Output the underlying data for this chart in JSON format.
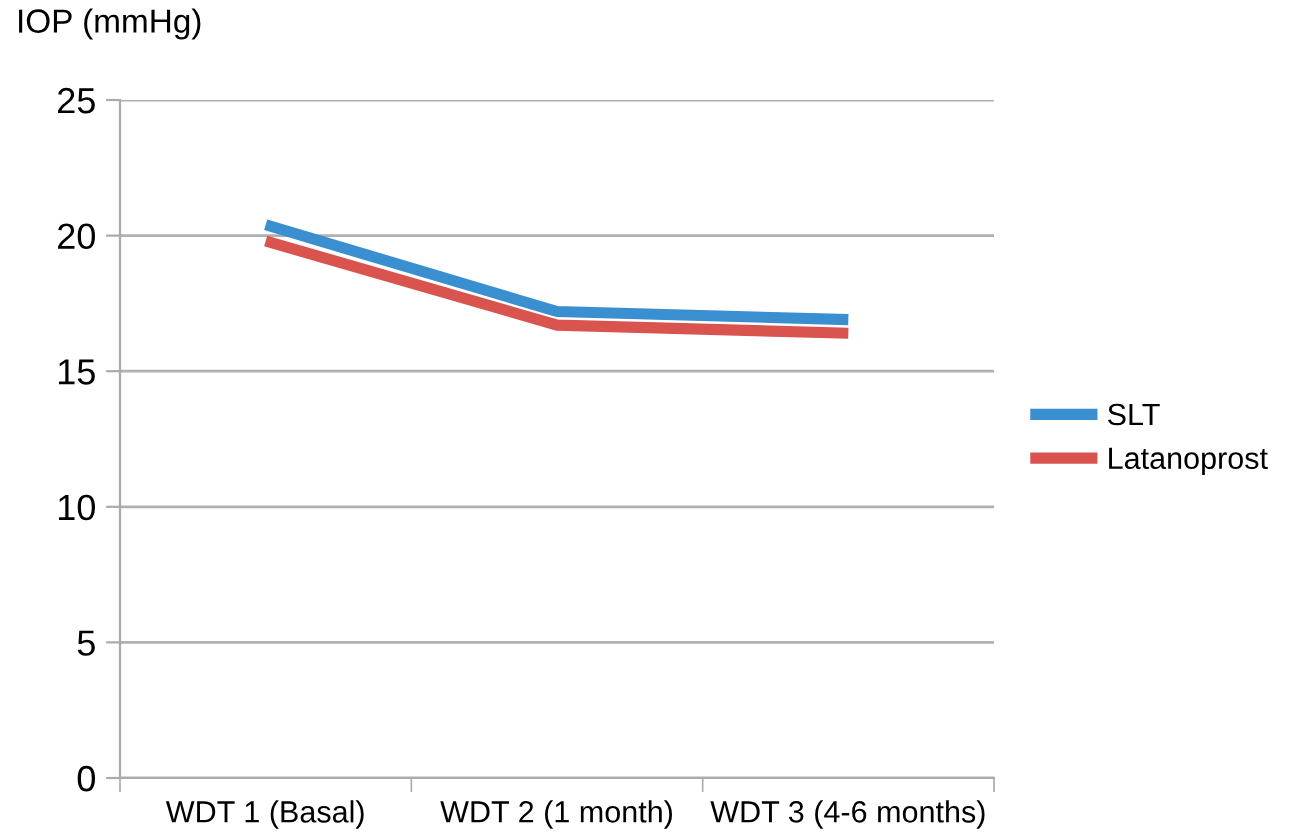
{
  "chart_data": {
    "type": "line",
    "ylabel": "IOP (mmHg)",
    "categories": [
      "WDT 1 (Basal)",
      "WDT 2 (1 month)",
      "WDT 3 (4-6 months)"
    ],
    "series": [
      {
        "name": "SLT",
        "color": "#3a8fd0",
        "values": [
          20.4,
          17.2,
          16.9
        ]
      },
      {
        "name": "Latanoprost",
        "color": "#d9534f",
        "values": [
          19.8,
          16.7,
          16.4
        ]
      }
    ],
    "ylim": [
      0,
      25
    ],
    "yticks": [
      0,
      5,
      10,
      15,
      20,
      25
    ],
    "grid": "y",
    "legend": "right",
    "marker": "none",
    "line_style": "solid"
  }
}
